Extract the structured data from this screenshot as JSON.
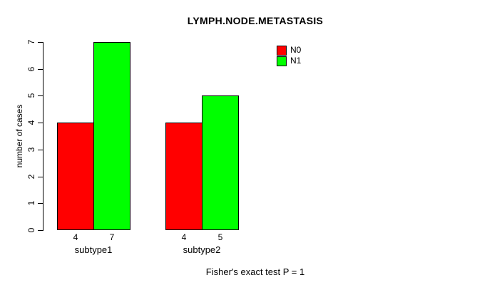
{
  "title": "LYMPH.NODE.METASTASIS",
  "footer": "Fisher's exact test P = 1",
  "chart_data": {
    "type": "bar",
    "title": "LYMPH.NODE.METASTASIS",
    "categories": [
      "subtype1",
      "subtype2"
    ],
    "series": [
      {
        "name": "N0",
        "color": "#FF0000",
        "values": [
          4,
          4
        ]
      },
      {
        "name": "N1",
        "color": "#00FF00",
        "values": [
          7,
          5
        ]
      }
    ],
    "bar_value_labels": [
      [
        "4",
        "7"
      ],
      [
        "4",
        "5"
      ]
    ],
    "xlabel": "",
    "ylabel": "number of cases",
    "ylim": [
      0,
      7
    ],
    "yticks": [
      "0",
      "1",
      "2",
      "3",
      "4",
      "5",
      "6",
      "7"
    ],
    "grid": false,
    "legend_position": "top-right-inside",
    "annotation": "Fisher's exact test P = 1",
    "background": "#ffffff",
    "axis_color": "#000000"
  }
}
